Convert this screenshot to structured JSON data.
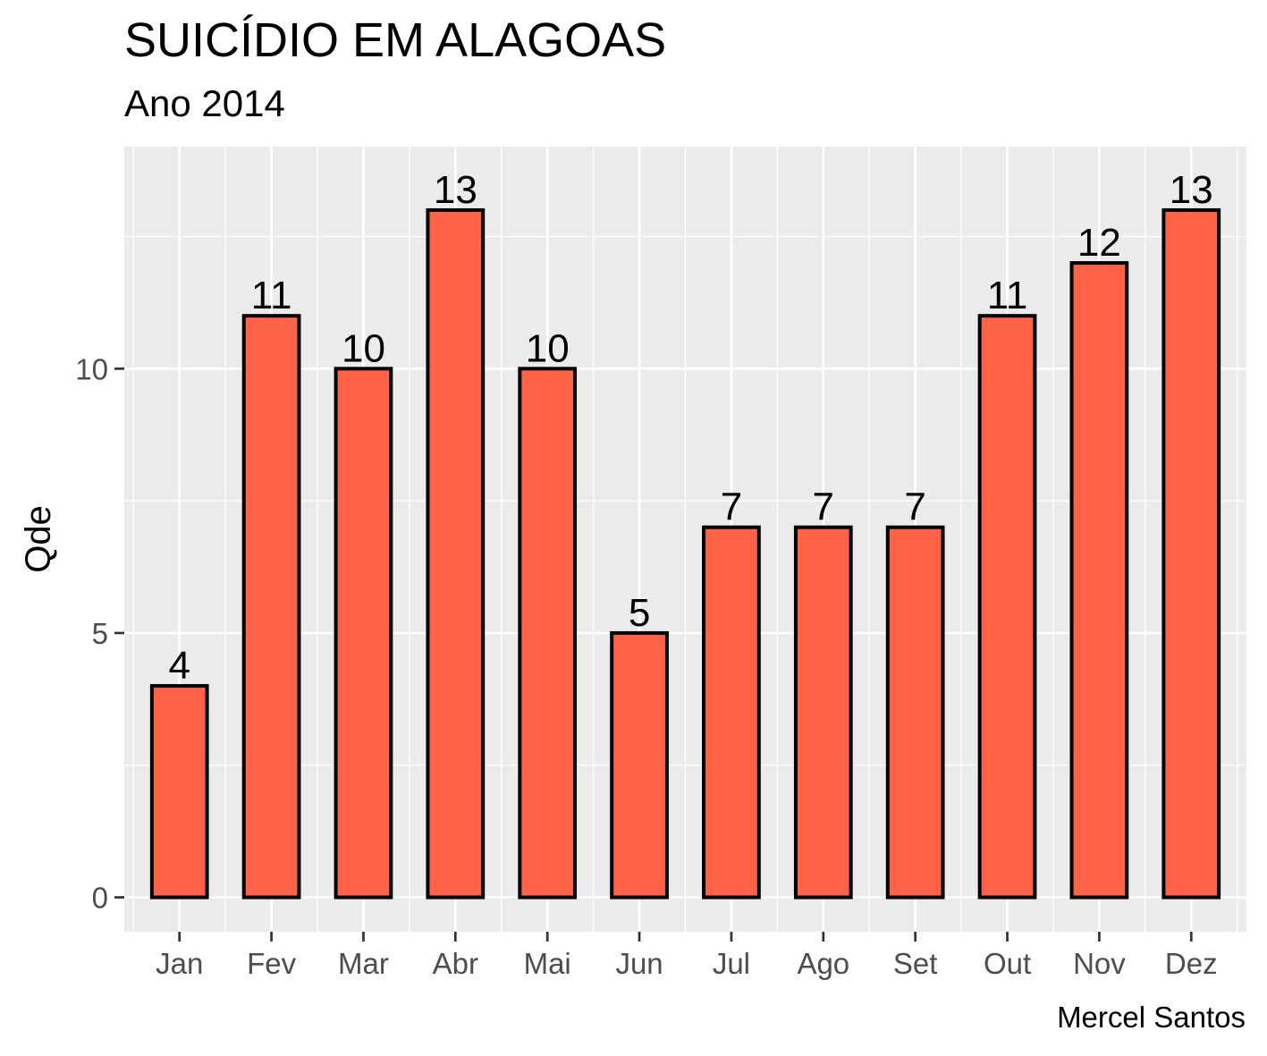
{
  "chart_data": {
    "type": "bar",
    "title": "SUICÍDIO EM ALAGOAS",
    "subtitle": "Ano 2014",
    "ylabel": "Qde",
    "xlabel": "",
    "caption": "Mercel Santos",
    "categories": [
      "Jan",
      "Fev",
      "Mar",
      "Abr",
      "Mai",
      "Jun",
      "Jul",
      "Ago",
      "Set",
      "Out",
      "Nov",
      "Dez"
    ],
    "values": [
      4,
      11,
      10,
      13,
      10,
      5,
      7,
      7,
      7,
      11,
      12,
      13
    ],
    "yticks": [
      0,
      5,
      10
    ],
    "ylim": [
      -0.65,
      14.2
    ],
    "grid": true,
    "colors": {
      "bar_fill": "#ff6347",
      "bar_stroke": "#000000",
      "panel_bg": "#ebebeb",
      "grid": "#ffffff",
      "tick_text": "#4d4d4d"
    }
  }
}
